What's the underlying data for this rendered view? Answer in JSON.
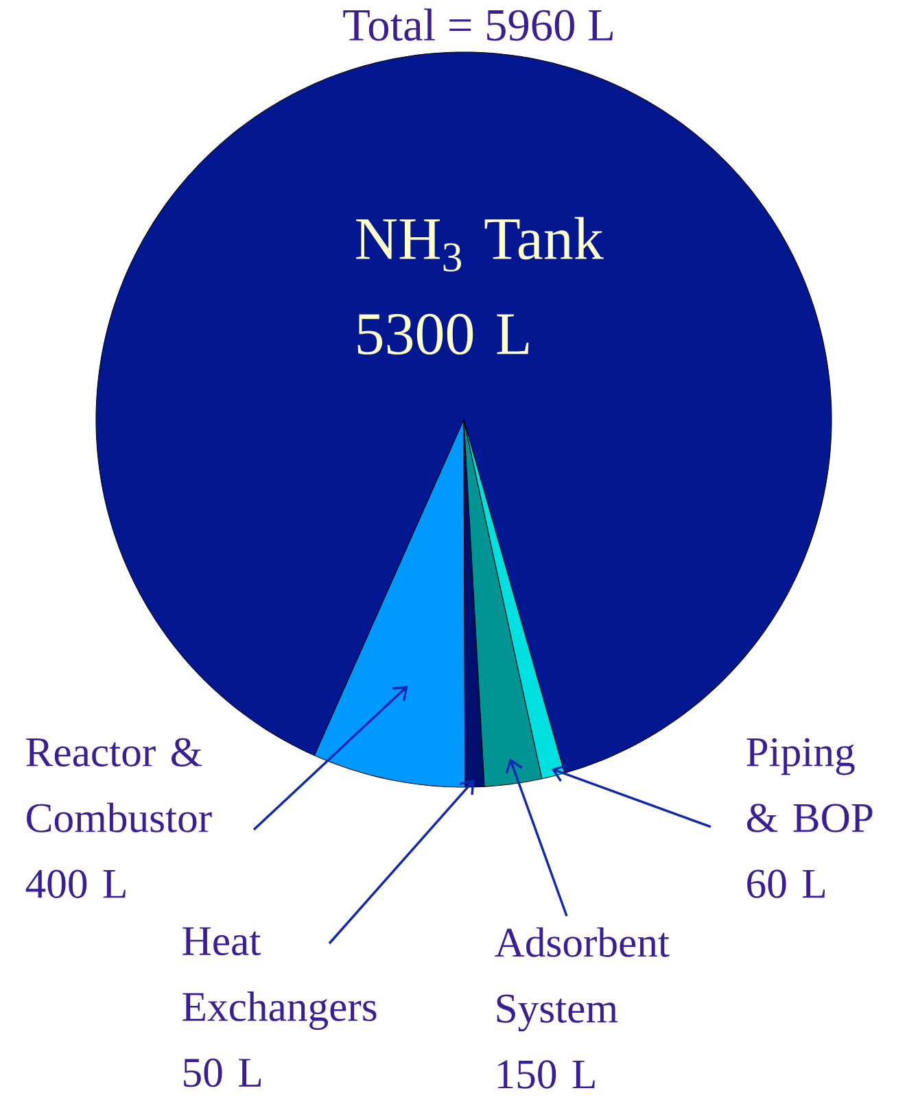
{
  "chart_data": {
    "type": "pie",
    "title": "Total = 5960 L",
    "categories": [
      "NH$_{3}$ Tank",
      "Reactor & Combustor",
      "Heat Exchangers",
      "Adsorbent System",
      "Piping & BOP"
    ],
    "values": [
      5300,
      400,
      50,
      150,
      60
    ],
    "colors": [
      "#031890",
      "#0099ff",
      "#000f6e",
      "#009494",
      "#00e0e0"
    ],
    "value_labels": [
      "5300 L",
      "400 L",
      "50 L",
      "150 L",
      "60 L"
    ]
  }
}
